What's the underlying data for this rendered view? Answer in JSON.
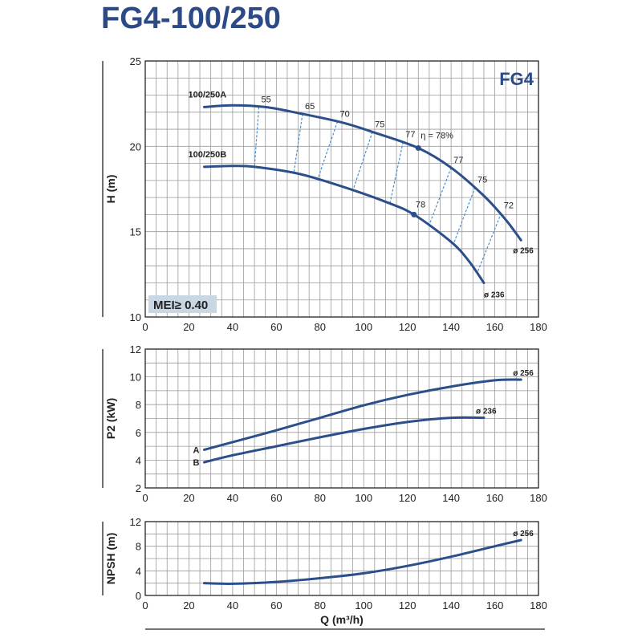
{
  "title": "FG4-100/250",
  "colors": {
    "curve": "#2b4f8a",
    "efficiency": "#4a8fd0",
    "grid": "#9a9a9a",
    "title": "#2b4a86",
    "badge": "#c9d6e3"
  },
  "chart_data": [
    {
      "type": "line",
      "id": "head",
      "ylabel": "H (m)",
      "xlim": [
        0,
        180
      ],
      "ylim": [
        10,
        25
      ],
      "xticks": [
        0,
        20,
        40,
        60,
        80,
        100,
        120,
        140,
        160,
        180
      ],
      "yticks": [
        10,
        15,
        20,
        25
      ],
      "grid": true,
      "badge": "FG4",
      "mei": "MEI≥ 0.40",
      "series": [
        {
          "name": "100/250A",
          "end_label": "ø 256",
          "points": [
            [
              27,
              22.3
            ],
            [
              40,
              22.4
            ],
            [
              55,
              22.3
            ],
            [
              70,
              21.95
            ],
            [
              90,
              21.4
            ],
            [
              105,
              20.8
            ],
            [
              125,
              19.9
            ],
            [
              140,
              18.75
            ],
            [
              155,
              17.1
            ],
            [
              165,
              15.7
            ],
            [
              172,
              14.5
            ]
          ]
        },
        {
          "name": "100/250B",
          "end_label": "ø 236",
          "points": [
            [
              27,
              18.8
            ],
            [
              40,
              18.85
            ],
            [
              50,
              18.8
            ],
            [
              70,
              18.4
            ],
            [
              90,
              17.65
            ],
            [
              110,
              16.75
            ],
            [
              123,
              16.0
            ],
            [
              140,
              14.4
            ],
            [
              148,
              13.3
            ],
            [
              155,
              12.0
            ]
          ]
        }
      ],
      "efficiency_lines": [
        {
          "label": "55",
          "from": [
            52,
            22.3
          ],
          "to": [
            50,
            18.8
          ]
        },
        {
          "label": "65",
          "from": [
            72,
            21.9
          ],
          "to": [
            68,
            18.45
          ]
        },
        {
          "label": "70",
          "from": [
            88,
            21.45
          ],
          "to": [
            79,
            18.1
          ]
        },
        {
          "label": "75",
          "from": [
            104,
            20.85
          ],
          "to": [
            95,
            17.4
          ]
        },
        {
          "label": "77",
          "from": [
            118,
            20.25
          ],
          "to": [
            112,
            16.65
          ]
        },
        {
          "label": "77",
          "from": [
            140,
            18.75
          ],
          "to": [
            130,
            15.4
          ]
        },
        {
          "label": "75",
          "from": [
            151,
            17.6
          ],
          "to": [
            141,
            14.25
          ]
        },
        {
          "label": "72",
          "from": [
            163,
            16.1
          ],
          "to": [
            152,
            12.6
          ]
        }
      ],
      "best_points": [
        {
          "label": "η = 78%",
          "point": [
            125,
            19.9
          ]
        },
        {
          "label": "78",
          "point": [
            123,
            16.0
          ]
        }
      ]
    },
    {
      "type": "line",
      "id": "power",
      "ylabel": "P2 (kW)",
      "xlim": [
        0,
        180
      ],
      "ylim": [
        2,
        12
      ],
      "xticks": [
        0,
        20,
        40,
        60,
        80,
        100,
        120,
        140,
        160,
        180
      ],
      "yticks": [
        2,
        4,
        6,
        8,
        10,
        12
      ],
      "grid": true,
      "series": [
        {
          "name": "A",
          "end_label": "ø 256",
          "points": [
            [
              27,
              4.75
            ],
            [
              40,
              5.3
            ],
            [
              60,
              6.15
            ],
            [
              80,
              7.05
            ],
            [
              100,
              7.95
            ],
            [
              120,
              8.7
            ],
            [
              140,
              9.3
            ],
            [
              160,
              9.75
            ],
            [
              172,
              9.8
            ]
          ]
        },
        {
          "name": "B",
          "end_label": "ø 236",
          "points": [
            [
              27,
              3.85
            ],
            [
              40,
              4.35
            ],
            [
              60,
              5.0
            ],
            [
              80,
              5.65
            ],
            [
              100,
              6.25
            ],
            [
              120,
              6.75
            ],
            [
              140,
              7.05
            ],
            [
              155,
              7.05
            ]
          ]
        }
      ]
    },
    {
      "type": "line",
      "id": "npsh",
      "ylabel": "NPSH (m)",
      "xlabel": "Q (m³/h)",
      "xlim": [
        0,
        180
      ],
      "ylim": [
        0,
        12
      ],
      "xticks": [
        0,
        20,
        40,
        60,
        80,
        100,
        120,
        140,
        160,
        180
      ],
      "yticks": [
        0,
        4,
        8,
        12
      ],
      "grid": true,
      "series": [
        {
          "end_label": "ø 256",
          "points": [
            [
              27,
              2.0
            ],
            [
              40,
              1.9
            ],
            [
              60,
              2.2
            ],
            [
              80,
              2.8
            ],
            [
              100,
              3.6
            ],
            [
              120,
              4.8
            ],
            [
              140,
              6.3
            ],
            [
              160,
              8.0
            ],
            [
              172,
              9.0
            ]
          ]
        }
      ]
    }
  ]
}
